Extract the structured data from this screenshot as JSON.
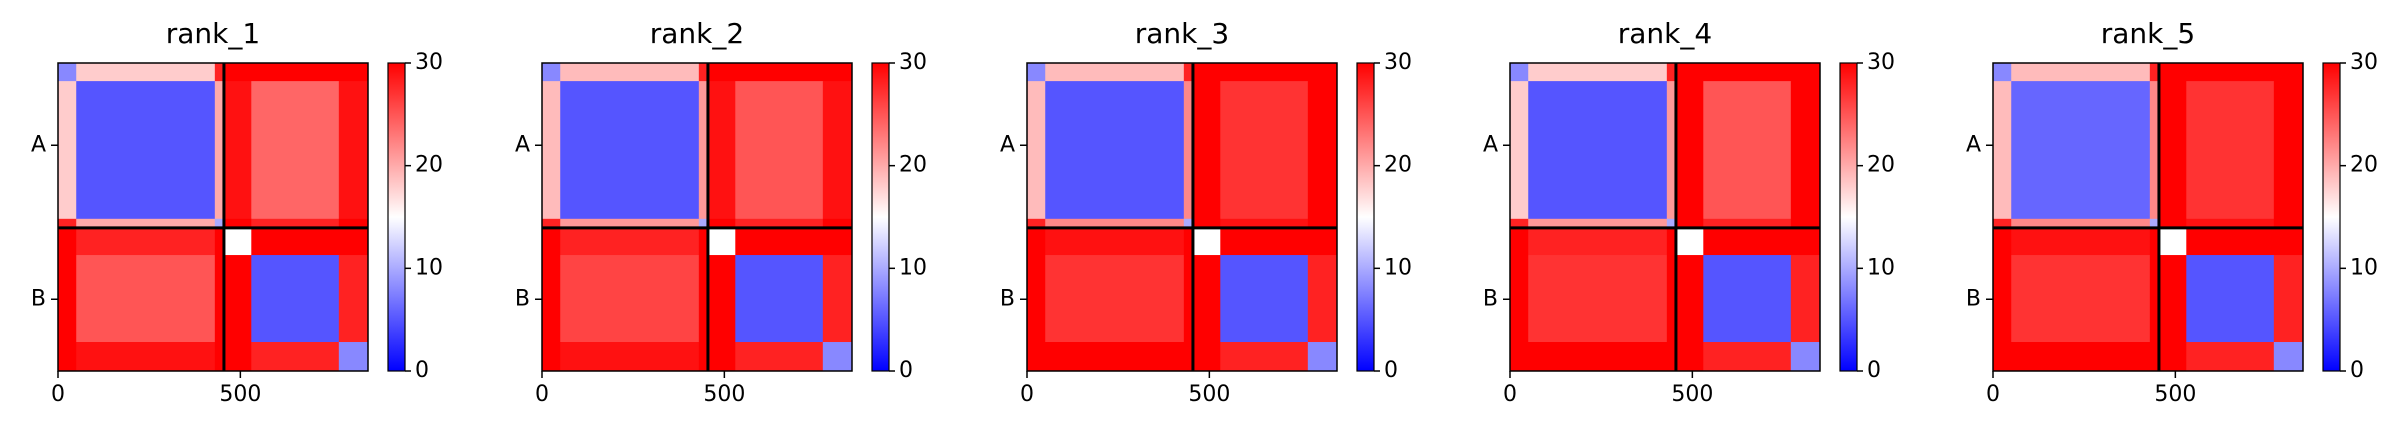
{
  "chart_data": [
    {
      "type": "heatmap",
      "title": "rank_1",
      "colormap": "bwr",
      "x_edges": [
        0,
        50,
        430,
        455,
        530,
        770,
        850
      ],
      "y_edges": [
        0,
        50,
        430,
        455,
        530,
        770,
        850
      ],
      "values": [
        [
          8,
          18,
          28,
          30,
          30,
          30
        ],
        [
          18,
          5,
          20,
          29,
          24,
          29
        ],
        [
          28,
          20,
          10,
          30,
          28,
          30
        ],
        [
          30,
          28,
          30,
          15,
          30,
          30
        ],
        [
          30,
          25,
          30,
          30,
          5,
          28
        ],
        [
          30,
          29,
          30,
          30,
          28,
          8
        ]
      ],
      "chain_breaks": [
        455
      ],
      "xlim": [
        0,
        850
      ],
      "xticks": [
        0,
        500
      ],
      "ylim": [
        850,
        0
      ],
      "yticks": [
        {
          "value": 227,
          "label": "A"
        },
        {
          "value": 652,
          "label": "B"
        }
      ],
      "clim": [
        0,
        30
      ],
      "cticks": [
        0,
        10,
        20,
        30
      ]
    },
    {
      "type": "heatmap",
      "title": "rank_2",
      "colormap": "bwr",
      "x_edges": [
        0,
        50,
        430,
        455,
        530,
        770,
        850
      ],
      "y_edges": [
        0,
        50,
        430,
        455,
        530,
        770,
        850
      ],
      "values": [
        [
          8,
          19,
          28,
          30,
          30,
          30
        ],
        [
          19,
          5,
          21,
          29,
          25,
          29
        ],
        [
          28,
          21,
          10,
          30,
          28,
          30
        ],
        [
          30,
          28,
          30,
          15,
          30,
          30
        ],
        [
          30,
          26,
          30,
          30,
          5,
          28
        ],
        [
          30,
          29,
          30,
          30,
          28,
          8
        ]
      ],
      "chain_breaks": [
        455
      ],
      "xlim": [
        0,
        850
      ],
      "xticks": [
        0,
        500
      ],
      "ylim": [
        850,
        0
      ],
      "yticks": [
        {
          "value": 227,
          "label": "A"
        },
        {
          "value": 652,
          "label": "B"
        }
      ],
      "clim": [
        0,
        30
      ],
      "cticks": [
        0,
        10,
        20,
        30
      ]
    },
    {
      "type": "heatmap",
      "title": "rank_3",
      "colormap": "bwr",
      "x_edges": [
        0,
        50,
        430,
        455,
        530,
        770,
        850
      ],
      "y_edges": [
        0,
        50,
        430,
        455,
        530,
        770,
        850
      ],
      "values": [
        [
          8,
          19,
          28,
          30,
          30,
          30
        ],
        [
          19,
          5,
          22,
          30,
          27,
          30
        ],
        [
          28,
          22,
          10,
          30,
          29,
          30
        ],
        [
          30,
          29,
          30,
          15,
          30,
          30
        ],
        [
          30,
          27,
          30,
          30,
          5,
          28
        ],
        [
          30,
          30,
          30,
          30,
          28,
          8
        ]
      ],
      "chain_breaks": [
        455
      ],
      "xlim": [
        0,
        850
      ],
      "xticks": [
        0,
        500
      ],
      "ylim": [
        850,
        0
      ],
      "yticks": [
        {
          "value": 227,
          "label": "A"
        },
        {
          "value": 652,
          "label": "B"
        }
      ],
      "clim": [
        0,
        30
      ],
      "cticks": [
        0,
        10,
        20,
        30
      ]
    },
    {
      "type": "heatmap",
      "title": "rank_4",
      "colormap": "bwr",
      "x_edges": [
        0,
        50,
        430,
        455,
        530,
        770,
        850
      ],
      "y_edges": [
        0,
        50,
        430,
        455,
        530,
        770,
        850
      ],
      "values": [
        [
          8,
          18,
          28,
          30,
          30,
          30
        ],
        [
          18,
          5,
          21,
          30,
          25,
          30
        ],
        [
          28,
          21,
          10,
          30,
          28,
          30
        ],
        [
          30,
          28,
          30,
          15,
          30,
          30
        ],
        [
          30,
          27,
          30,
          30,
          5,
          28
        ],
        [
          30,
          30,
          30,
          30,
          28,
          8
        ]
      ],
      "chain_breaks": [
        455
      ],
      "xlim": [
        0,
        850
      ],
      "xticks": [
        0,
        500
      ],
      "ylim": [
        850,
        0
      ],
      "yticks": [
        {
          "value": 227,
          "label": "A"
        },
        {
          "value": 652,
          "label": "B"
        }
      ],
      "clim": [
        0,
        30
      ],
      "cticks": [
        0,
        10,
        20,
        30
      ]
    },
    {
      "type": "heatmap",
      "title": "rank_5",
      "colormap": "bwr",
      "x_edges": [
        0,
        50,
        430,
        455,
        530,
        770,
        850
      ],
      "y_edges": [
        0,
        50,
        430,
        455,
        530,
        770,
        850
      ],
      "values": [
        [
          8,
          19,
          28,
          30,
          30,
          30
        ],
        [
          19,
          6,
          22,
          30,
          27,
          30
        ],
        [
          28,
          22,
          10,
          30,
          29,
          30
        ],
        [
          30,
          29,
          30,
          15,
          30,
          30
        ],
        [
          30,
          27,
          30,
          30,
          5,
          28
        ],
        [
          30,
          30,
          30,
          30,
          28,
          8
        ]
      ],
      "chain_breaks": [
        455
      ],
      "xlim": [
        0,
        850
      ],
      "xticks": [
        0,
        500
      ],
      "ylim": [
        850,
        0
      ],
      "yticks": [
        {
          "value": 227,
          "label": "A"
        },
        {
          "value": 652,
          "label": "B"
        }
      ],
      "clim": [
        0,
        30
      ],
      "cticks": [
        0,
        10,
        20,
        30
      ]
    }
  ]
}
